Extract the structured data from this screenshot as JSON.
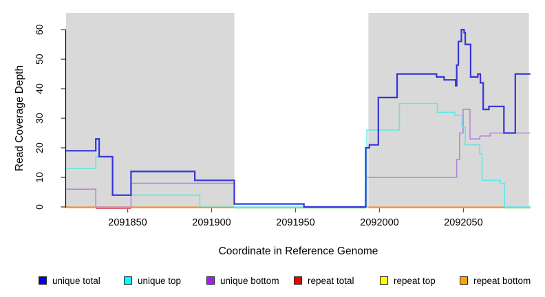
{
  "figure": {
    "xlabel": "Coordinate in Reference Genome",
    "ylabel": "Read Coverage Depth"
  },
  "chart_data": {
    "type": "line",
    "subtype": "step-coverage-plot",
    "title": "",
    "xlabel": "Coordinate in Reference Genome",
    "ylabel": "Read Coverage Depth",
    "xlim": [
      2091813.3,
      2092089.9
    ],
    "ylim": [
      0,
      65.6
    ],
    "x_ticks": [
      2091850,
      2091900,
      2091950,
      2092000,
      2092050
    ],
    "y_ticks": [
      0,
      10,
      20,
      30,
      40,
      50,
      60
    ],
    "grid": false,
    "legend_position": "bottom",
    "background_regions": [
      {
        "name": "shaded-region-left",
        "x0": 2091813.3,
        "x1": 2091913.5,
        "color": "#d9d9d9"
      },
      {
        "name": "shaded-region-right",
        "x0": 2091993.4,
        "x1": 2092089.0,
        "color": "#d9d9d9"
      }
    ],
    "series": [
      {
        "name": "unique-total",
        "label": "unique total",
        "legend_color": "#0000ee",
        "line_color": "#3434d9",
        "line_width": 2.2,
        "steps": [
          [
            2091813.3,
            19
          ],
          [
            2091831,
            23
          ],
          [
            2091833,
            17
          ],
          [
            2091841,
            4
          ],
          [
            2091852,
            12
          ],
          [
            2091890,
            9
          ],
          [
            2091913.5,
            1
          ],
          [
            2091955,
            0
          ],
          [
            2091991.8,
            20
          ],
          [
            2091994,
            21
          ],
          [
            2091999.3,
            37
          ],
          [
            2092010.5,
            45
          ],
          [
            2092034,
            44
          ],
          [
            2092038.5,
            43
          ],
          [
            2092045.4,
            41
          ],
          [
            2092046,
            48
          ],
          [
            2092047,
            56
          ],
          [
            2092048.8,
            60
          ],
          [
            2092050.4,
            59
          ],
          [
            2092051.1,
            55
          ],
          [
            2092054.3,
            44
          ],
          [
            2092058.6,
            45
          ],
          [
            2092060.1,
            42
          ],
          [
            2092061.8,
            33
          ],
          [
            2092065.2,
            34
          ],
          [
            2092074.1,
            25
          ],
          [
            2092080.9,
            45
          ],
          [
            2092089.9,
            45
          ]
        ]
      },
      {
        "name": "unique-top",
        "label": "unique top",
        "legend_color": "#00ffff",
        "line_color": "#63e6e6",
        "line_width": 1.6,
        "steps": [
          [
            2091813.3,
            13
          ],
          [
            2091831,
            17
          ],
          [
            2091841,
            4
          ],
          [
            2091893,
            0
          ],
          [
            2091992.5,
            26
          ],
          [
            2092011.9,
            35
          ],
          [
            2092034.4,
            32
          ],
          [
            2092044.9,
            31
          ],
          [
            2092049.2,
            27
          ],
          [
            2092051.1,
            21
          ],
          [
            2092059.7,
            18
          ],
          [
            2092061.1,
            9
          ],
          [
            2092072,
            8
          ],
          [
            2092074.5,
            0
          ],
          [
            2092089.9,
            0
          ]
        ]
      },
      {
        "name": "unique-bottom",
        "label": "unique bottom",
        "legend_color": "#a020f0",
        "line_color": "#b885db",
        "line_width": 1.6,
        "steps": [
          [
            2091813.3,
            6
          ],
          [
            2091831,
            0
          ],
          [
            2091852,
            8
          ],
          [
            2091913.5,
            1
          ],
          [
            2091955,
            0
          ],
          [
            2091992.3,
            10
          ],
          [
            2092046,
            16
          ],
          [
            2092047.7,
            25
          ],
          [
            2092049.8,
            33
          ],
          [
            2092053.9,
            23
          ],
          [
            2092059.8,
            24
          ],
          [
            2092066,
            25
          ],
          [
            2092089.9,
            25
          ]
        ]
      },
      {
        "name": "repeat-total",
        "label": "repeat total",
        "legend_color": "#ee0000",
        "line_color": "#ee0000",
        "line_width": 1.4,
        "steps": [
          [
            2091813.3,
            0
          ],
          [
            2092089.9,
            0
          ]
        ]
      },
      {
        "name": "repeat-top",
        "label": "repeat top",
        "legend_color": "#ffff00",
        "line_color": "#ffff00",
        "line_width": 1.4,
        "steps": [
          [
            2091813.3,
            0
          ],
          [
            2092089.9,
            0
          ]
        ]
      },
      {
        "name": "repeat-bottom",
        "label": "repeat bottom",
        "legend_color": "#ffa500",
        "line_color": "#ff9a00",
        "line_width": 2.2,
        "steps": [
          [
            2091813.3,
            0
          ],
          [
            2092089.9,
            0
          ]
        ],
        "visible_segments": [
          [
            2091813.3,
            2091913.5
          ],
          [
            2091993.4,
            2092074.5
          ]
        ]
      }
    ],
    "baseline_blend_segments": [
      {
        "name": "magenta-blend",
        "color": "#cc5f8f",
        "x0": 2091831,
        "x1": 2091852,
        "dy": 2.2,
        "width": 1.6
      },
      {
        "name": "green-blend-mid",
        "color": "#8ccf8c",
        "x0": 2091913.5,
        "x1": 2091992,
        "dy": 1.5,
        "width": 1.6
      },
      {
        "name": "green-blend-right",
        "color": "#8ccf8c",
        "x0": 2092074.5,
        "x1": 2092089.9,
        "dy": 1.5,
        "width": 1.6
      }
    ]
  }
}
